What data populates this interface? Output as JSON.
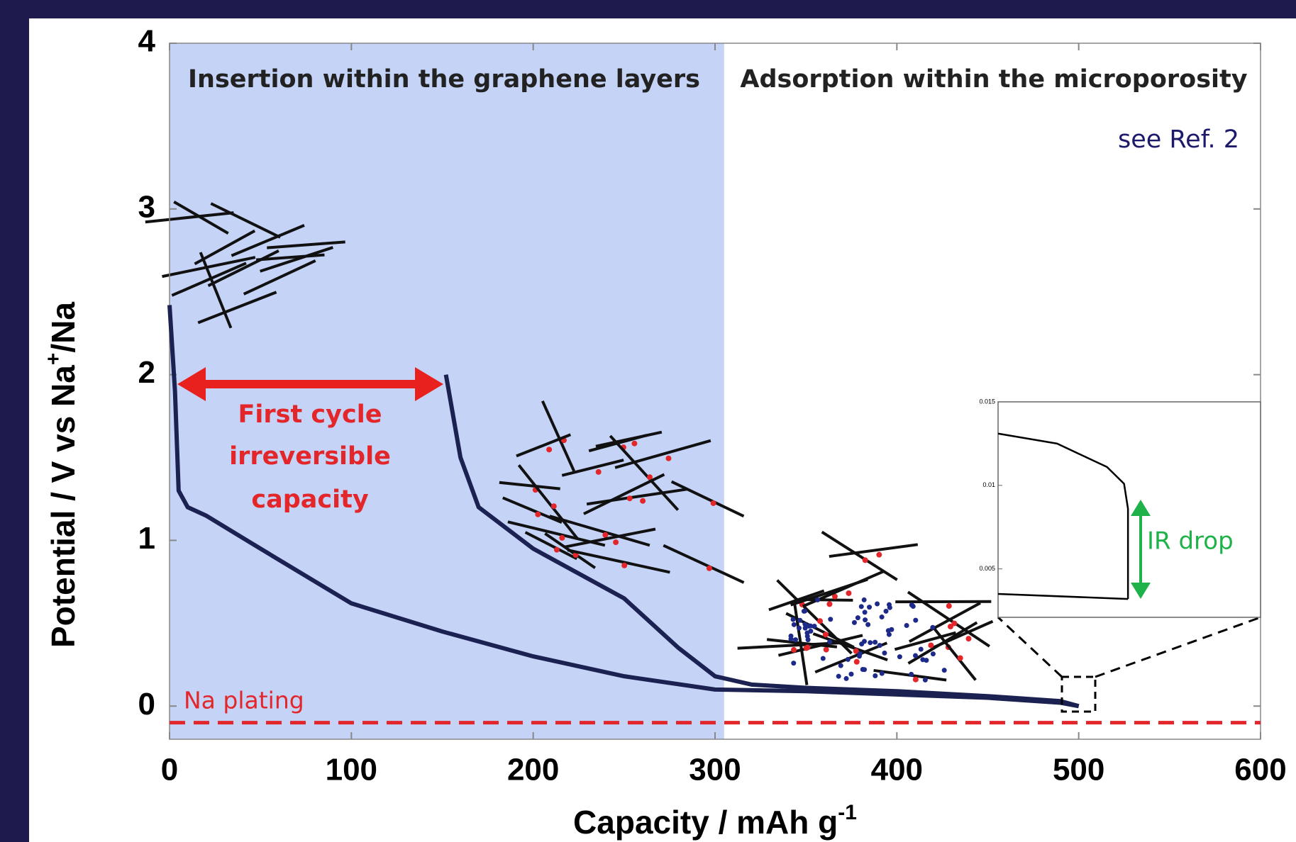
{
  "chart_data": [
    {
      "type": "line",
      "ylabel": [
        "Potential / V vs Na",
        "+",
        "/Na"
      ],
      "xlabel": [
        "Capacity / mAh g",
        "-1"
      ],
      "xlim": [
        0,
        600
      ],
      "xticks": [
        0,
        100,
        200,
        300,
        400,
        500,
        600
      ],
      "ylim": [
        -0.2,
        4
      ],
      "yticks": [
        0,
        1,
        2,
        3,
        4
      ],
      "shaded_xrange": [
        0,
        305
      ],
      "shade_color": "#c5d3f7",
      "hline": -0.1,
      "hline_color": "#e3262a",
      "region_labels": [
        "Insertion within the graphene layers",
        "Adsorption within the microporosity"
      ],
      "reference": "see Ref. 2",
      "annotation": [
        "First cycle",
        "irreversible",
        "capacity"
      ],
      "hline_label": "Na plating",
      "series": [
        {
          "color": "#1b2150",
          "x": [
            0,
            3,
            5,
            10,
            20,
            50,
            100,
            150,
            200,
            250,
            300,
            350,
            400,
            450,
            490,
            500
          ],
          "values": [
            2.42,
            1.9,
            1.3,
            1.2,
            1.15,
            0.95,
            0.62,
            0.45,
            0.3,
            0.18,
            0.1,
            0.09,
            0.07,
            0.05,
            0.02,
            0
          ]
        },
        {
          "color": "#1b2150",
          "x": [
            152,
            160,
            170,
            200,
            250,
            280,
            300,
            320,
            350,
            400,
            450,
            490,
            500
          ],
          "values": [
            2.0,
            1.5,
            1.2,
            0.95,
            0.65,
            0.35,
            0.18,
            0.13,
            0.11,
            0.09,
            0.06,
            0.03,
            0
          ]
        }
      ]
    },
    {
      "type": "line",
      "xlim": [
        485,
        505
      ],
      "ylim": [
        0.0021,
        0.015
      ],
      "yticks": [
        0.005,
        0.01,
        0.015
      ],
      "annotation": "IR drop",
      "annotation_color": "#1fb24a",
      "series": [
        {
          "color": "#000000",
          "x": [
            485,
            489.5,
            493.3,
            494.6,
            494.9,
            494.9
          ],
          "values": [
            0.0131,
            0.0125,
            0.0111,
            0.0101,
            0.0086,
            0.0032
          ]
        },
        {
          "color": "#000000",
          "x": [
            485,
            494.9
          ],
          "values": [
            0.0035,
            0.0032
          ]
        }
      ]
    }
  ]
}
